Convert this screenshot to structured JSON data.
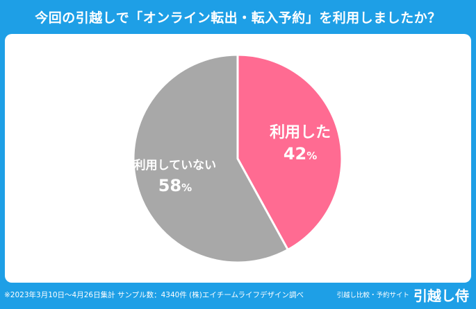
{
  "header": {
    "title": "今回の引越しで「オンライン転出・転入予約」を利用しましたか？"
  },
  "chart_data": {
    "type": "pie",
    "title": "今回の引越しで「オンライン転出・転入予約」を利用しましたか？",
    "slices": [
      {
        "label": "利用した",
        "value": 42,
        "value_label": "42",
        "unit": "%",
        "color": "#ff6b92"
      },
      {
        "label": "利用していない",
        "value": 58,
        "value_label": "58",
        "unit": "%",
        "color": "#a8a8a8"
      }
    ]
  },
  "footer": {
    "note": "※2023年3月10日〜4月26日集計 サンプル数：4340件 (株)エイチームライフデザイン調べ",
    "brand_sub": "引越し比較・予約サイト",
    "brand_name": "引越し侍"
  }
}
